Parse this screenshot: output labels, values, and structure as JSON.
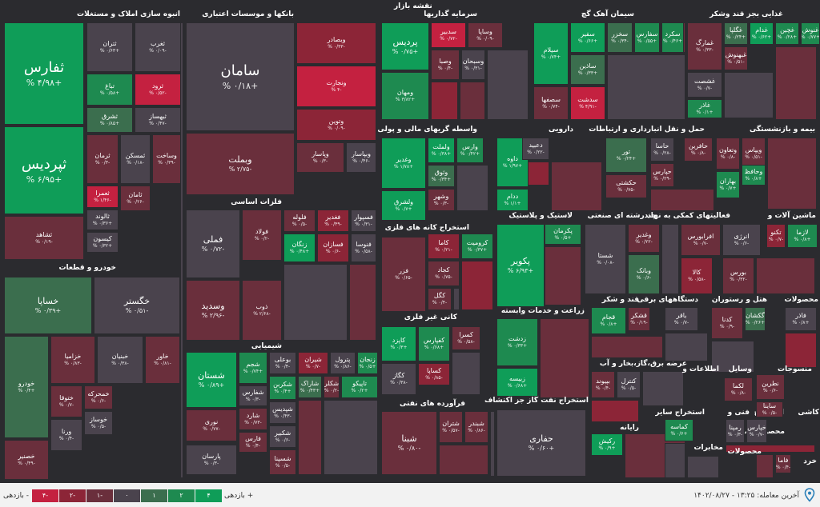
{
  "header_title": "نقشه بازار",
  "sectors": [
    {
      "label": "انبوه سازی املاک و مستغلات"
    },
    {
      "label": "بانکها و موسسات اعتباری"
    },
    {
      "label": "سرمایه گذاریها"
    },
    {
      "label": "سیمان آهک گچ"
    },
    {
      "label": "غذایی بجز قند وشکر"
    },
    {
      "label": "واسطه گریهای مالی و پولی"
    },
    {
      "label": "دارویی"
    },
    {
      "label": "حمل و نقل انبارداری و ارتباطات"
    },
    {
      "label": "بیمه و بازنشستگی"
    },
    {
      "label": "فلزات اساسی"
    },
    {
      "label": "استخراج کانه های فلزی"
    },
    {
      "label": "لاستیک و پلاستیک"
    },
    {
      "label": "چندرشته ای صنعتی"
    },
    {
      "label": "فعالیتهای کمکی به نهاد"
    },
    {
      "label": "ماشین آلات و"
    },
    {
      "label": "خودرو و قطعات"
    },
    {
      "label": "کانی غیر فلزی"
    },
    {
      "label": "زراعت و خدمات وابسته"
    },
    {
      "label": "قند و شکر"
    },
    {
      "label": "دستگاههای برقی"
    },
    {
      "label": "هتل و رستوران"
    },
    {
      "label": "محصولات"
    },
    {
      "label": "شیمیایی"
    },
    {
      "label": "عرضه برق،گاز،بخار و آب"
    },
    {
      "label": "اطلاعات و"
    },
    {
      "label": "وسایل"
    },
    {
      "label": "منسوجات"
    },
    {
      "label": "فرآورده های نفتی"
    },
    {
      "label": "استخراج نفت گاز جز اکتشاف"
    },
    {
      "label": "رایانه"
    },
    {
      "label": "استخراج سایر"
    },
    {
      "label": "فنی و"
    },
    {
      "label": "استخراج"
    },
    {
      "label": "کاشی"
    },
    {
      "label": "محصولات"
    },
    {
      "label": "محصو"
    },
    {
      "label": "مخابرات"
    },
    {
      "label": "محصولات"
    },
    {
      "label": "خرد"
    }
  ],
  "tiles": [
    {
      "name": "ثفارس",
      "change": "+۴/۹۸ %",
      "color": "g3"
    },
    {
      "name": "ثتران",
      "change": "+۰/۶۳ %",
      "color": "z0"
    },
    {
      "name": "ثغرب",
      "change": "-۰/۰۹ %",
      "color": "z0"
    },
    {
      "name": "تباغ",
      "change": "+۰/۵۸ %",
      "color": "g2"
    },
    {
      "name": "ثرود",
      "change": "-۰/۵۲ %",
      "color": "r3"
    },
    {
      "name": "ثشرق",
      "change": "+۰/۸۵ %",
      "color": "g1"
    },
    {
      "name": "ثبهساز",
      "change": "-۰/۴۷ %",
      "color": "z0"
    },
    {
      "name": "ثپردیس",
      "change": "+۶/۹۵ %",
      "color": "g3"
    },
    {
      "name": "ثرمان",
      "change": "-۰/۳ %",
      "color": "r1"
    },
    {
      "name": "ثمسکن",
      "change": "-۰/۱۸ %",
      "color": "z0"
    },
    {
      "name": "وساخت",
      "change": "-۰/۳۹ %",
      "color": "r1"
    },
    {
      "name": "ثعمرا",
      "change": "-۱/۴۶ %",
      "color": "r3"
    },
    {
      "name": "ثامان",
      "change": "-۰/۲۶ %",
      "color": "r1"
    },
    {
      "name": "ثالوند",
      "change": "+۰/۳۶ %",
      "color": "z0"
    },
    {
      "name": "کیسون",
      "change": "+۰/۳۲ %",
      "color": "z0"
    },
    {
      "name": "ثشاهد",
      "change": "-۰/۱۹ %",
      "color": "r1"
    },
    {
      "name": "سامان",
      "change": "+۰/۱۸ %",
      "color": "z0"
    },
    {
      "name": "وبصادر",
      "change": "-۰/۳۳ %",
      "color": "r2"
    },
    {
      "name": "ونجارت",
      "change": "-۴ %",
      "color": "r3"
    },
    {
      "name": "وتوین",
      "change": "-۰/۰۹ %",
      "color": "r2"
    },
    {
      "name": "وبملت",
      "change": "-۲/۷۵ %",
      "color": "r1"
    },
    {
      "name": "وپاسار",
      "change": "-۰/۳ %",
      "color": "r1"
    },
    {
      "name": "وبپاسار",
      "change": "-۰/۴۶ %",
      "color": "z0"
    },
    {
      "name": "پردیس",
      "change": "+۰/۷۵ %",
      "color": "g3"
    },
    {
      "name": "ومهان",
      "change": "+۳/۸۲ %",
      "color": "g2"
    },
    {
      "name": "سدبیر",
      "change": "-۰/۷۲ %",
      "color": "r3"
    },
    {
      "name": "وساپا",
      "change": "-۰/۰۹ %",
      "color": "r1"
    },
    {
      "name": "وصبا",
      "change": "-۰/۴ %",
      "color": "r1"
    },
    {
      "name": "وسبحان",
      "change": "-۰/۳۱ %",
      "color": "z0"
    },
    {
      "name": "سیلام",
      "change": "+۰/۷۴ %",
      "color": "g3"
    },
    {
      "name": "سفیر",
      "change": "+۰/۶۶ %",
      "color": "g3"
    },
    {
      "name": "سخزر",
      "change": "-۰/۳۴ %",
      "color": "g1"
    },
    {
      "name": "سفارس",
      "change": "+۰/۵۵ %",
      "color": "g2"
    },
    {
      "name": "سکرد",
      "change": "+۰/۴۶ %",
      "color": "g2"
    },
    {
      "name": "ساذین",
      "change": "+۰/۳۳ %",
      "color": "g1"
    },
    {
      "name": "سصفها",
      "change": "-۰/۷۴ %",
      "color": "r1"
    },
    {
      "name": "سدشت",
      "change": "-۴/۹۱ %",
      "color": "r3"
    },
    {
      "name": "غمارگ",
      "change": "-۰/۳۳ %",
      "color": "r1"
    },
    {
      "name": "غگلپا",
      "change": "+۰/۲۴ %",
      "color": "g1"
    },
    {
      "name": "غدام",
      "change": "+۰/۶۲ %",
      "color": "g3"
    },
    {
      "name": "غچین",
      "change": "+۰/۲۸ %",
      "color": "g2"
    },
    {
      "name": "غنوش",
      "change": "+۰/۷۷ %",
      "color": "g2"
    },
    {
      "name": "غبهنوش",
      "change": "-۰/۵۱ %",
      "color": "r1"
    },
    {
      "name": "غشصت",
      "change": "-۰/۷ %",
      "color": "z0"
    },
    {
      "name": "غاذر",
      "change": "+۰/۱ %",
      "color": "g2"
    },
    {
      "name": "وغدیر",
      "change": "+۱/۷۸ %",
      "color": "g3"
    },
    {
      "name": "ولملت",
      "change": "+۰/۳۸ %",
      "color": "g3"
    },
    {
      "name": "وارس",
      "change": "+۰/۴۲ %",
      "color": "g2"
    },
    {
      "name": "وثوق",
      "change": "+۰/۳۴ %",
      "color": "g1"
    },
    {
      "name": "ولشرق",
      "change": "+۰/۷ %",
      "color": "g3"
    },
    {
      "name": "وشهر",
      "change": "-۰/۳ %",
      "color": "r1"
    },
    {
      "name": "داوه",
      "change": "+۱/۹۷ %",
      "color": "g3"
    },
    {
      "name": "ددام",
      "change": "+۱/۱ %",
      "color": "g3"
    },
    {
      "name": "دعبید",
      "change": "-۰/۲۲ %",
      "color": "z0"
    },
    {
      "name": "تور",
      "change": "+۰/۲۴ %",
      "color": "g1"
    },
    {
      "name": "حاسا",
      "change": "-۰/۲۸ %",
      "color": "z0"
    },
    {
      "name": "حافرین",
      "change": "-۰/۸ %",
      "color": "r1"
    },
    {
      "name": "حکشتی",
      "change": "-۰/۷۵ %",
      "color": "r1"
    },
    {
      "name": "حپارس",
      "change": "-۰/۲۹ %",
      "color": "r1"
    },
    {
      "name": "وتعاون",
      "change": "-۰/۸ %",
      "color": "r1"
    },
    {
      "name": "ویپاس",
      "change": "-۰/۵۱ %",
      "color": "r1"
    },
    {
      "name": "وحافظ",
      "change": "+۰/۸ %",
      "color": "g2"
    },
    {
      "name": "بهاران",
      "change": "+۰/۷ %",
      "color": "g2"
    },
    {
      "name": "فملی",
      "change": "-۰/۷۲ %",
      "color": "z0"
    },
    {
      "name": "فولاد",
      "change": "-۰/۲ %",
      "color": "r1"
    },
    {
      "name": "فلوله",
      "change": "-۰/۵ %",
      "color": "r1"
    },
    {
      "name": "فغدیر",
      "change": "-۰/۴۹ %",
      "color": "r2"
    },
    {
      "name": "فسپوار",
      "change": "-۰/۳۱ %",
      "color": "z0"
    },
    {
      "name": "زنگان",
      "change": "+۰/۴۸ %",
      "color": "g3"
    },
    {
      "name": "فسازان",
      "change": "-۰/۶ %",
      "color": "r2"
    },
    {
      "name": "فنوسا",
      "change": "-۰/۵۸ %",
      "color": "z0"
    },
    {
      "name": "وسدید",
      "change": "-۲/۹۶ %",
      "color": "r1"
    },
    {
      "name": "ذوب",
      "change": "-۲/۶۸ %",
      "color": "r1"
    },
    {
      "name": "فزر",
      "change": "-۰/۶۵ %",
      "color": "r1"
    },
    {
      "name": "کاما",
      "change": "-۰/۲۱ %",
      "color": "r2"
    },
    {
      "name": "کروميت",
      "change": "+۰/۳۷ %",
      "color": "g2"
    },
    {
      "name": "کجاد",
      "change": "-۰/۷۵ %",
      "color": "r1"
    },
    {
      "name": "کگل",
      "change": "-۰/۴ %",
      "color": "r1"
    },
    {
      "name": "پکرمان",
      "change": "+۰/۵ %",
      "color": "g2"
    },
    {
      "name": "پکویر",
      "change": "+۶/۹۳ %",
      "color": "g3"
    },
    {
      "name": "شستا",
      "change": "-۰/۰۸ %",
      "color": "z0"
    },
    {
      "name": "وغدیر",
      "change": "-۰/۲۲ %",
      "color": "r1"
    },
    {
      "name": "وبانک",
      "change": "-۰/۶ %",
      "color": "g1"
    },
    {
      "name": "افرابورس",
      "change": "-۰/۷ %",
      "color": "r1"
    },
    {
      "name": "انرژی",
      "change": "-۰/۶ %",
      "color": "z0"
    },
    {
      "name": "کالا",
      "change": "-۰/۵۸ %",
      "color": "r2"
    },
    {
      "name": "بورس",
      "change": "-۰/۳۲ %",
      "color": "r1"
    },
    {
      "name": "تکنو",
      "change": "-۰/۷ %",
      "color": "r2"
    },
    {
      "name": "لازما",
      "change": "+۰/۸ %",
      "color": "g2"
    },
    {
      "name": "خساپا",
      "change": "+۰/۳۹ %",
      "color": "g1"
    },
    {
      "name": "خگستر",
      "change": "-۰/۵۱ %",
      "color": "z0"
    },
    {
      "name": "خودرو",
      "change": "+۰/۴ %",
      "color": "g1"
    },
    {
      "name": "خزامیا",
      "change": "-۰/۸۳ %",
      "color": "r1"
    },
    {
      "name": "خبنیان",
      "change": "-۰/۳۸ %",
      "color": "z0"
    },
    {
      "name": "خاور",
      "change": "-۰/۸۱ %",
      "color": "r1"
    },
    {
      "name": "ختوقا",
      "change": "-۰/۷ %",
      "color": "r1"
    },
    {
      "name": "خمحرکه",
      "change": "-۰/۶ %",
      "color": "r1"
    },
    {
      "name": "خوساز",
      "change": "-۰/۵ %",
      "color": "z0"
    },
    {
      "name": "ورنا",
      "change": "-۰/۴ %",
      "color": "z0"
    },
    {
      "name": "خصنیر",
      "change": "-۰/۴۹ %",
      "color": "r1"
    },
    {
      "name": "کاپزد",
      "change": "+۰/۳ %",
      "color": "g3"
    },
    {
      "name": "کفپارس",
      "change": "+۰/۶۸ %",
      "color": "g2"
    },
    {
      "name": "کسرا",
      "change": "-۰/۵۸ %",
      "color": "r1"
    },
    {
      "name": "کساپا",
      "change": "-۰/۸۵ %",
      "color": "r2"
    },
    {
      "name": "کگاز",
      "change": "-۰/۳۸ %",
      "color": "z0"
    },
    {
      "name": "زدشت",
      "change": "+۰/۳۳ %",
      "color": "g2"
    },
    {
      "name": "زبیسه",
      "change": "+۰/۶۸ %",
      "color": "g3"
    },
    {
      "name": "قشکر",
      "change": "-۰/۱۹ %",
      "color": "r1"
    },
    {
      "name": "قجام",
      "change": "+۰/۸ %",
      "color": "g2"
    },
    {
      "name": "باقر",
      "change": "-۰/۷ %",
      "color": "z0"
    },
    {
      "name": "گکشان",
      "change": "+۰/۲۶ %",
      "color": "g1"
    },
    {
      "name": "کدنا",
      "change": "-۰/۹ %",
      "color": "r1"
    },
    {
      "name": "فاذر",
      "change": "+۰/۸ %",
      "color": "z0"
    },
    {
      "name": "شستان",
      "change": "+۰/۸۹ %",
      "color": "g3"
    },
    {
      "name": "شجم",
      "change": "+۰/۷۴ %",
      "color": "g2"
    },
    {
      "name": "بوعلی",
      "change": "-۰/۴ %",
      "color": "z0"
    },
    {
      "name": "شیران",
      "change": "-۰/۷ %",
      "color": "r2"
    },
    {
      "name": "پترول",
      "change": "-۰/۸۶ %",
      "color": "z0"
    },
    {
      "name": "زنجان",
      "change": "+۰/۵ %",
      "color": "g2"
    },
    {
      "name": "شکربن",
      "change": "+۰/۴ %",
      "color": "g2"
    },
    {
      "name": "شاراک",
      "change": "+۰/۴۳ %",
      "color": "g1"
    },
    {
      "name": "شکلر",
      "change": "-۰/۲ %",
      "color": "r1"
    },
    {
      "name": "تاپیکو",
      "change": "+۰/۲ %",
      "color": "g2"
    },
    {
      "name": "شفارس",
      "change": "-۰/۳ %",
      "color": "z0"
    },
    {
      "name": "شارد",
      "change": "-۰/۷۳ %",
      "color": "r1"
    },
    {
      "name": "شپدیس",
      "change": "-۰/۴۳ %",
      "color": "z0"
    },
    {
      "name": "شکبیر",
      "change": "-۰/۶ %",
      "color": "z0"
    },
    {
      "name": "شسپنا",
      "change": "-۰/۵ %",
      "color": "r1"
    },
    {
      "name": "نوری",
      "change": "-۰/۷۷ %",
      "color": "r1"
    },
    {
      "name": "فارس",
      "change": "-۰/۴ %",
      "color": "r1"
    },
    {
      "name": "پارسان",
      "change": "-۰/۳ %",
      "color": "z0"
    },
    {
      "name": "بپیوند",
      "change": "-۰/۴ %",
      "color": "r1"
    },
    {
      "name": "کنترل",
      "change": "-۰/۵ %",
      "color": "z0"
    },
    {
      "name": "شبنا",
      "change": "-۰/۸۰ %",
      "color": "r1"
    },
    {
      "name": "شتران",
      "change": "-۰/۵۷ %",
      "color": "r1"
    },
    {
      "name": "شبندر",
      "change": "-۰/۸۶ %",
      "color": "r1"
    },
    {
      "name": "حفاری",
      "change": "+۰/۶۰ %",
      "color": "z0"
    },
    {
      "name": "رکیش",
      "change": "+۰/۹ %",
      "color": "g3"
    },
    {
      "name": "کماسه",
      "change": "+۰/۶ %",
      "color": "g2"
    },
    {
      "name": "رمپنا",
      "change": "-۰/۳ %",
      "color": "z0"
    },
    {
      "name": "خپارس",
      "change": "-۰/۷ %",
      "color": "z0"
    },
    {
      "name": "نطرین",
      "change": "-۰/۶ %",
      "color": "r1"
    },
    {
      "name": "لکما",
      "change": "-۰/۸ %",
      "color": "r1"
    },
    {
      "name": "ساینا",
      "change": "-۰/۵ %",
      "color": "r1"
    },
    {
      "name": "فاما",
      "change": "-۰/۴ %",
      "color": "r1"
    }
  ],
  "legend": {
    "left_label": "بازدهی -",
    "right_label": "بازدهی +",
    "steps": [
      {
        "label": "۴-",
        "color": "#c42140"
      },
      {
        "label": "۲-",
        "color": "#8c2537"
      },
      {
        "label": "۱-",
        "color": "#6a2f3c"
      },
      {
        "label": "۰",
        "color": "#4a434d"
      },
      {
        "label": "۱",
        "color": "#3b6e4e"
      },
      {
        "label": "۲",
        "color": "#1e8a50"
      },
      {
        "label": "۴",
        "color": "#0f9d58"
      }
    ]
  },
  "last_trade": {
    "label": "آخرین معامله:",
    "time": "۱۳:۲۵",
    "date": "۱۴۰۲/۰۸/۲۷"
  },
  "location_icon": "location-pin-icon"
}
